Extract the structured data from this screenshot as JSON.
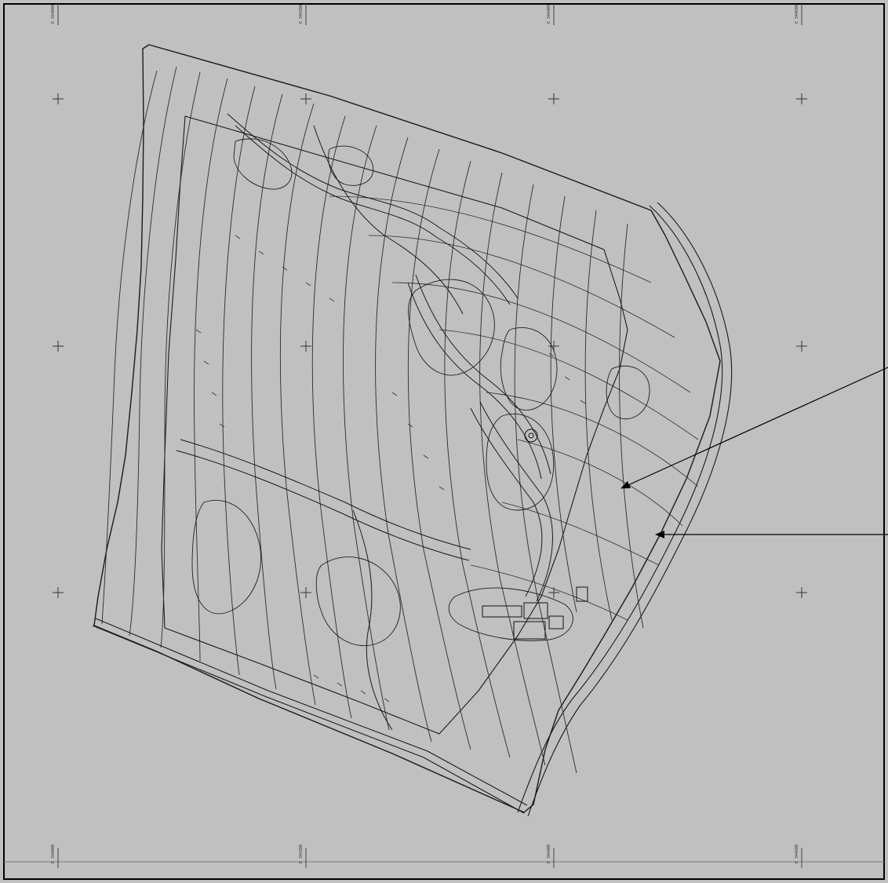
{
  "map": {
    "paper_color": "#c0c0c0",
    "ink_color": "#1a1a1a",
    "border_color": "#000000",
    "contour_color": "#2b2b2b"
  },
  "grid": {
    "top_labels": [
      "E 344000",
      "E 344200",
      "E 344400",
      "E 344600"
    ],
    "bottom_labels": [
      "E 344000",
      "E 344200",
      "E 344400",
      "E 344600"
    ]
  },
  "annotations": {
    "arrow_count": 2
  }
}
